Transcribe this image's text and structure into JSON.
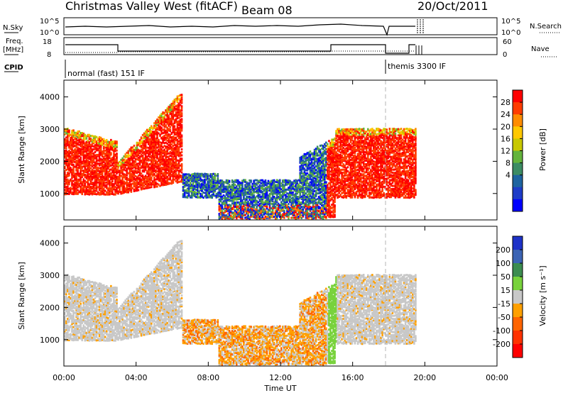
{
  "header": {
    "station": "Christmas Valley West (fitACF)",
    "beam": "Beam 08",
    "date": "20/Oct/2011"
  },
  "sky_panel": {
    "label": "N.Sky",
    "right_label": "N.Search",
    "left_ticks": [
      "10^5",
      "10^0"
    ],
    "right_ticks": [
      "10^5",
      "10^0"
    ]
  },
  "freq_panel": {
    "label_line1": "Freq.",
    "label_line2": "[MHz]",
    "right_label": "Nave",
    "left_ticks": [
      "18",
      "8"
    ],
    "right_ticks": [
      "60",
      "0"
    ]
  },
  "cpid": {
    "label": "CPID",
    "mode1": "normal (fast) 151 IF",
    "mode2": "themis 3300 IF"
  },
  "chart_data": [
    {
      "type": "heatmap",
      "quantity": "Power",
      "ylabel": "Slant Range [km]",
      "xlabel": "",
      "colorbar_label": "Power [dB]",
      "colorbar_ticks": [
        "28",
        "24",
        "20",
        "16",
        "12",
        "8",
        "4"
      ],
      "colorbar_colors": [
        "#ff0000",
        "#ff3c00",
        "#ff8c00",
        "#ffc800",
        "#c8c800",
        "#64b43c",
        "#3c8c64",
        "#1e64a0",
        "#1e3cc8",
        "#0000ff"
      ],
      "yticks": [
        "4000",
        "3000",
        "2000",
        "1000"
      ],
      "yrange": [
        180,
        4520
      ],
      "xrange": [
        "00:00",
        "24:00"
      ]
    },
    {
      "type": "heatmap",
      "quantity": "Velocity",
      "ylabel": "Slant Range [km]",
      "xlabel": "Time UT",
      "colorbar_label": "Velocity [m s⁻¹]",
      "colorbar_ticks": [
        "200",
        "100",
        "50",
        "15",
        "-15",
        "-50",
        "-100",
        "-200"
      ],
      "colorbar_colors": [
        "#1e32c8",
        "#3c64b4",
        "#3c8c50",
        "#78d23c",
        "#c8c8c8",
        "#ffa000",
        "#ff6400",
        "#ff3200",
        "#ff0000"
      ],
      "yticks": [
        "4000",
        "3000",
        "2000",
        "1000"
      ],
      "yrange": [
        180,
        4520
      ],
      "xticks": [
        "00:00",
        "04:00",
        "08:00",
        "12:00",
        "16:00",
        "20:00",
        "00:00"
      ],
      "xrange": [
        "00:00",
        "24:00"
      ]
    }
  ],
  "colors": {
    "frame": "#000000",
    "ground_scatter": "#c8c8c8"
  }
}
